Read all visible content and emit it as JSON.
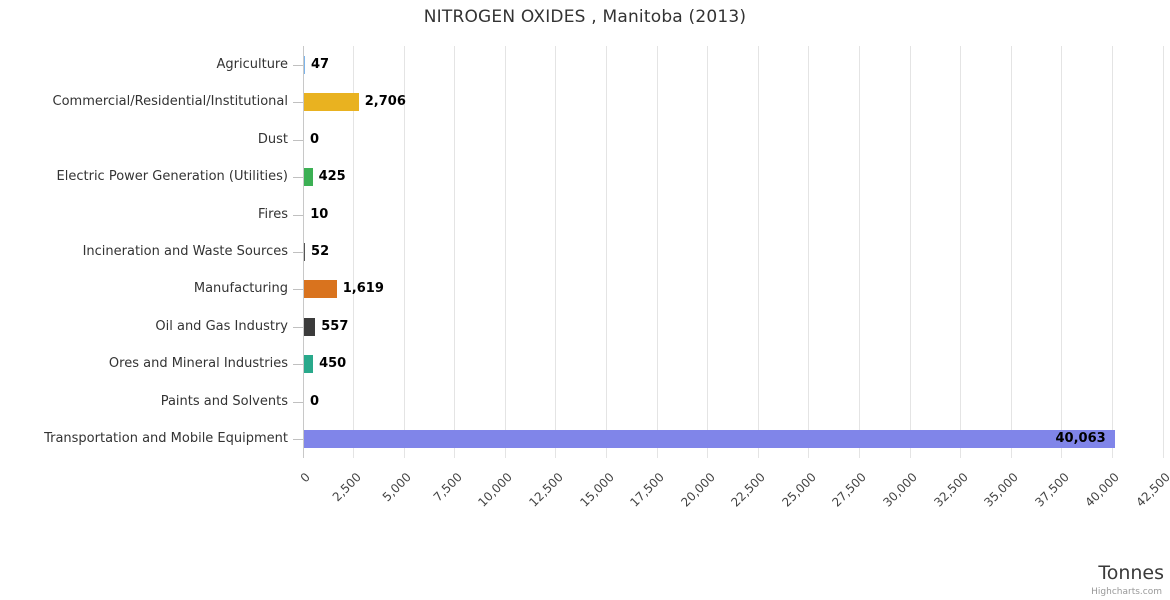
{
  "credits": "Highcharts.com",
  "chart_data": {
    "type": "bar",
    "orientation": "horizontal",
    "title": "NITROGEN OXIDES , Manitoba (2013)",
    "xlabel": "Tonnes",
    "ylabel": "",
    "xlim": [
      0,
      42500
    ],
    "tick_interval": 2500,
    "grid": true,
    "legend": false,
    "x_tick_labels": [
      "0",
      "2,500",
      "5,000",
      "7,500",
      "10,000",
      "12,500",
      "15,000",
      "17,500",
      "20,000",
      "22,500",
      "25,000",
      "27,500",
      "30,000",
      "32,500",
      "35,000",
      "37,500",
      "40,000",
      "42,500"
    ],
    "categories": [
      "Agriculture",
      "Commercial/Residential/Institutional",
      "Dust",
      "Electric Power Generation (Utilities)",
      "Fires",
      "Incineration and Waste Sources",
      "Manufacturing",
      "Oil and Gas Industry",
      "Ores and Mineral Industries",
      "Paints and Solvents",
      "Transportation and Mobile Equipment"
    ],
    "values": [
      47,
      2706,
      0,
      425,
      10,
      52,
      1619,
      557,
      450,
      0,
      40063
    ],
    "value_labels": [
      "47",
      "2,706",
      "0",
      "425",
      "10",
      "52",
      "1,619",
      "557",
      "450",
      "0",
      "40,063"
    ],
    "colors": [
      "#7cb5ec",
      "#e9b220",
      "#999999",
      "#3cb054",
      "#999999",
      "#555555",
      "#d9731e",
      "#3b3b3b",
      "#29a98b",
      "#999999",
      "#8085e9"
    ]
  }
}
